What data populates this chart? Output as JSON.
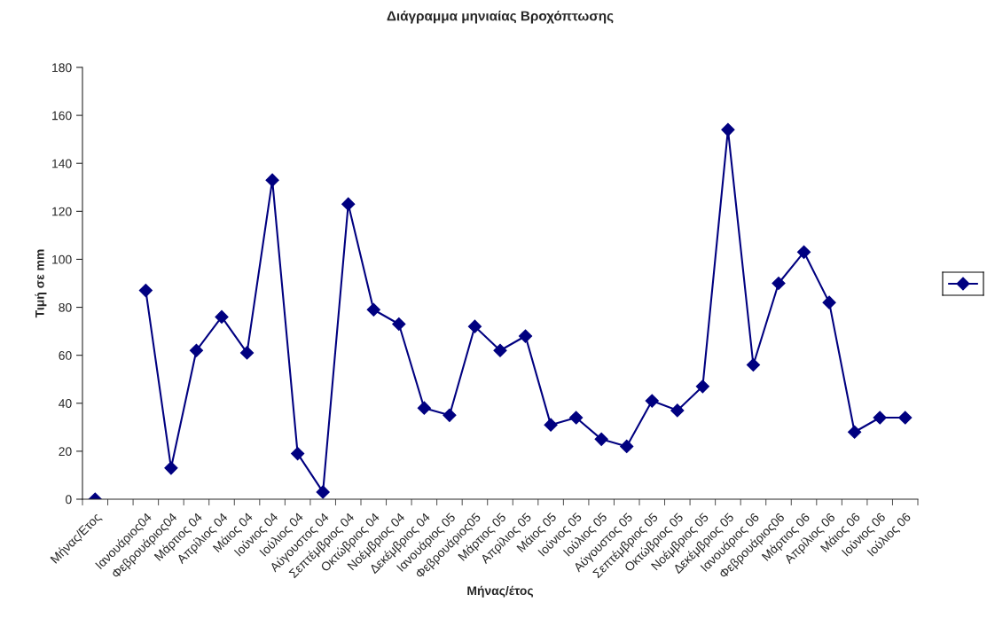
{
  "chart_data": {
    "type": "line",
    "title": "Διάγραμμα μηνιαίας Βροχόπτωσης",
    "xlabel": "Μήνας/έτος",
    "ylabel": "Τιμή σε mm",
    "categories": [
      "Μήνας/Ετος",
      null,
      "Ιανουάριος04",
      "Φεβρουάριος04",
      "Μάρτιος 04",
      "Απρίλιος 04",
      "Μάιος 04",
      "Ιούνιος 04",
      "Ιούλιος 04",
      "Αύγουστος 04",
      "Σεπτέμβριος 04",
      "Οκτώβριος 04",
      "Νοέμβριος 04",
      "Δεκέμβριος 04",
      "Ιανουάριος 05",
      "Φεβρουάριος05",
      "Μάρτιος 05",
      "Απρίλιος 05",
      "Μάιος 05",
      "Ιούνιος 05",
      "Ιούλιος 05",
      "Αύγουστος 05",
      "Σεπτέμβριος 05",
      "Οκτώβριος 05",
      "Νοέμβριος 05",
      "Δεκέμβριος 05",
      "Ιανουάριος 06",
      "Φεβρουάριος06",
      "Μάρτιος 06",
      "Απρίλιος 06",
      "Μάιος 06",
      "Ιούνιος 06",
      "Ιούλιος 06"
    ],
    "series": [
      {
        "color": "#000080",
        "values": [
          0,
          null,
          87,
          13,
          62,
          76,
          61,
          133,
          19,
          3,
          123,
          79,
          73,
          38,
          35,
          72,
          62,
          68,
          31,
          34,
          25,
          22,
          41,
          37,
          47,
          154,
          56,
          90,
          103,
          82,
          28,
          34,
          34
        ]
      }
    ],
    "ylim": [
      0,
      180
    ],
    "yticks": [
      0,
      20,
      40,
      60,
      80,
      100,
      120,
      140,
      160,
      180
    ],
    "grid": false,
    "marker": "diamond",
    "line_style": "solid"
  }
}
